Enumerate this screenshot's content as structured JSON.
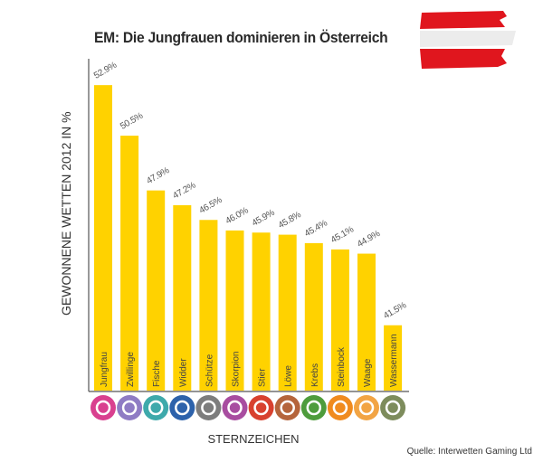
{
  "chart_data": {
    "type": "bar",
    "title": "EM: Die Jungfrauen dominieren in Österreich",
    "xlabel": "STERNZEICHEN",
    "ylabel": "GEWONNENE WETTEN 2012 IN %",
    "source": "Quelle: Interwetten Gaming Ltd",
    "categories": [
      "Jungfrau",
      "Zwillinge",
      "Fische",
      "Widder",
      "Schütze",
      "Skorpion",
      "Stier",
      "Löwe",
      "Krebs",
      "Steinbock",
      "Waage",
      "Wassermann"
    ],
    "values": [
      52.9,
      50.5,
      47.9,
      47.2,
      46.5,
      46.0,
      45.9,
      45.8,
      45.4,
      45.1,
      44.9,
      41.5
    ],
    "data_labels": [
      "52.9%",
      "50.5%",
      "47.9%",
      "47.2%",
      "46.5%",
      "46.0%",
      "45.9%",
      "45.8%",
      "45.4%",
      "45.1%",
      "44.9%",
      "41.5%"
    ],
    "grid": false,
    "bar_color": "#ffd200",
    "icon_colors": [
      "#d9408f",
      "#8f7cc4",
      "#3ea9ab",
      "#2d62ab",
      "#7d7d7d",
      "#a84da0",
      "#d8412f",
      "#b5653c",
      "#4e9c3c",
      "#f08b1f",
      "#f2a444",
      "#7d8c5c"
    ],
    "icons": [
      "virgo-icon",
      "gemini-icon",
      "pisces-icon",
      "aries-icon",
      "sagittarius-icon",
      "scorpio-icon",
      "taurus-icon",
      "leo-icon",
      "cancer-icon",
      "capricorn-icon",
      "libra-icon",
      "aquarius-icon"
    ]
  }
}
